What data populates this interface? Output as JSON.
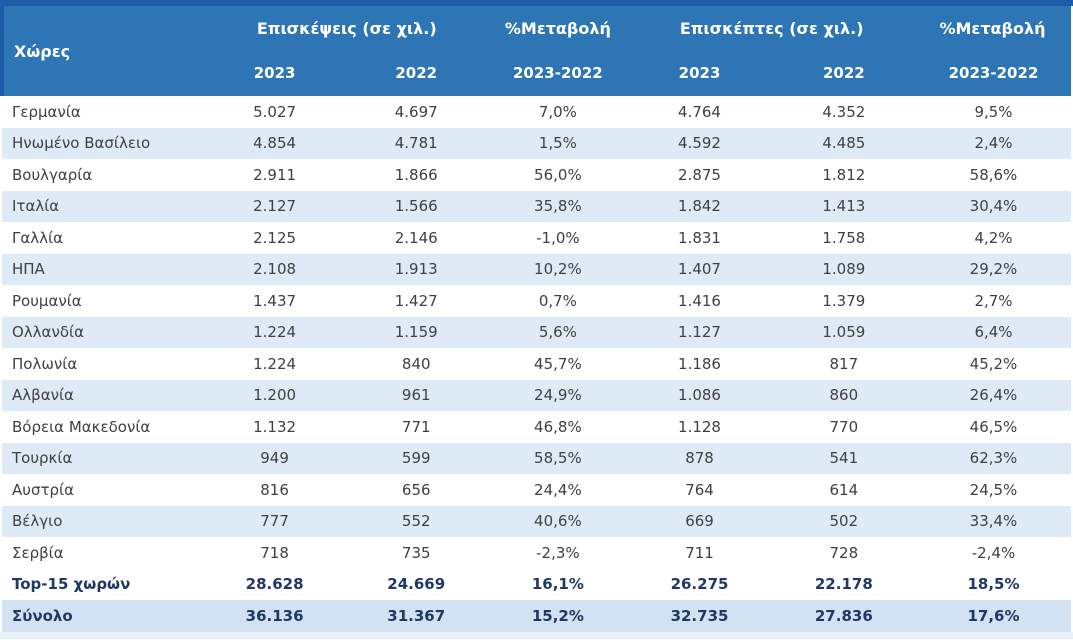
{
  "table": {
    "header": {
      "corner": "Χώρες",
      "groups": [
        {
          "label": "Επισκέψεις (σε χιλ.)"
        },
        {
          "label": "%Μεταβολή"
        },
        {
          "label": "Επισκέπτες (σε χιλ.)"
        },
        {
          "label": "%Μεταβολή"
        }
      ],
      "years": [
        "2023",
        "2022",
        "2023-2022",
        "2023",
        "2022",
        "2023-2022"
      ]
    }
  },
  "chart_data": {
    "type": "table",
    "title": "",
    "columns": [
      "Χώρες",
      "Επισκέψεις (σε χιλ.) 2023",
      "Επισκέψεις (σε χιλ.) 2022",
      "%Μεταβολή 2023-2022 (Επισκέψεις)",
      "Επισκέπτες (σε χιλ.) 2023",
      "Επισκέπτες (σε χιλ.) 2022",
      "%Μεταβολή 2023-2022 (Επισκέπτες)"
    ],
    "rows": [
      [
        "Γερμανία",
        "5.027",
        "4.697",
        "7,0%",
        "4.764",
        "4.352",
        "9,5%"
      ],
      [
        "Ηνωμένο Βασίλειο",
        "4.854",
        "4.781",
        "1,5%",
        "4.592",
        "4.485",
        "2,4%"
      ],
      [
        "Βουλγαρία",
        "2.911",
        "1.866",
        "56,0%",
        "2.875",
        "1.812",
        "58,6%"
      ],
      [
        "Ιταλία",
        "2.127",
        "1.566",
        "35,8%",
        "1.842",
        "1.413",
        "30,4%"
      ],
      [
        "Γαλλία",
        "2.125",
        "2.146",
        "-1,0%",
        "1.831",
        "1.758",
        "4,2%"
      ],
      [
        "ΗΠΑ",
        "2.108",
        "1.913",
        "10,2%",
        "1.407",
        "1.089",
        "29,2%"
      ],
      [
        "Ρουμανία",
        "1.437",
        "1.427",
        "0,7%",
        "1.416",
        "1.379",
        "2,7%"
      ],
      [
        "Ολλανδία",
        "1.224",
        "1.159",
        "5,6%",
        "1.127",
        "1.059",
        "6,4%"
      ],
      [
        "Πολωνία",
        "1.224",
        "840",
        "45,7%",
        "1.186",
        "817",
        "45,2%"
      ],
      [
        "Αλβανία",
        "1.200",
        "961",
        "24,9%",
        "1.086",
        "860",
        "26,4%"
      ],
      [
        "Βόρεια Μακεδονία",
        "1.132",
        "771",
        "46,8%",
        "1.128",
        "770",
        "46,5%"
      ],
      [
        "Τουρκία",
        "949",
        "599",
        "58,5%",
        "878",
        "541",
        "62,3%"
      ],
      [
        "Αυστρία",
        "816",
        "656",
        "24,4%",
        "764",
        "614",
        "24,5%"
      ],
      [
        "Βέλγιο",
        "777",
        "552",
        "40,6%",
        "669",
        "502",
        "33,4%"
      ],
      [
        "Σερβία",
        "718",
        "735",
        "-2,3%",
        "711",
        "728",
        "-2,4%"
      ],
      [
        "Top-15 χωρών",
        "28.628",
        "24.669",
        "16,1%",
        "26.275",
        "22.178",
        "18,5%"
      ],
      [
        "Σύνολο",
        "36.136",
        "31.367",
        "15,2%",
        "32.735",
        "27.836",
        "17,6%"
      ]
    ],
    "row_styles": [
      "plain",
      "alt",
      "plain",
      "alt",
      "plain",
      "alt",
      "plain",
      "alt",
      "plain",
      "alt",
      "plain",
      "alt",
      "plain",
      "alt",
      "plain",
      "bold",
      "total"
    ]
  },
  "colors": {
    "header_bg": "#2E75B6",
    "header_text": "#FFFFFF",
    "accent_border": "#1C5CA8",
    "row_alt_bg": "#DEEAF6",
    "total_row_bg": "#D3E2F2",
    "body_text": "#404040",
    "emphasis_text": "#1F3864",
    "bottom_strip": "#E9F0F8"
  }
}
